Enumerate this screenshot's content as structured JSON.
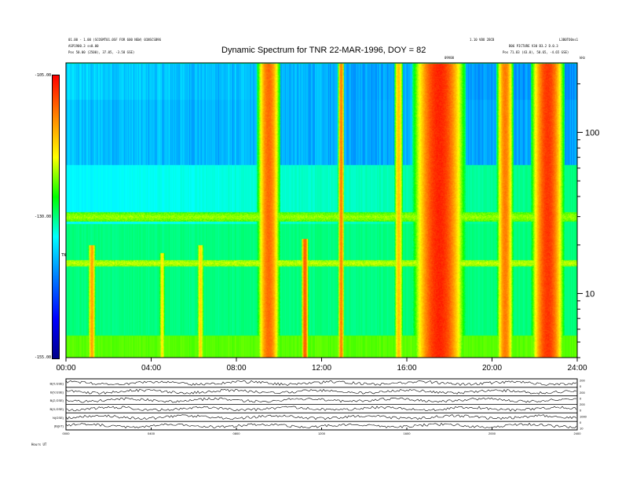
{
  "header": {
    "title": "Dynamic Spectrum for TNR 22-MAR-1996, DOY = 82",
    "left_line1": "01.00 - 1.00 (SCOSMT01.0SF FOR 600 NEW) 01NSCSB96",
    "left_line2": "ASP1900.3 ss0.00",
    "left_line3": "Pos    50.00 (2500), 37.05, -3.58 GSE)",
    "right_top_a": "1.10 VBO 2BCB",
    "right_top_b": "L3B0TO0ns1",
    "right_line2": "B06 PICTURE V30 B3.2 D.0.3",
    "right_line3": "Pos    71.83 (43.0), 50.65, -4.65 GSE)",
    "marker_label": "09V00",
    "unit_label": "kHz"
  },
  "colorbar": {
    "max_label": "-105.00",
    "mid_label": "-130.00",
    "min_label": "-155.00",
    "unit_label": "TNR"
  },
  "bottom": {
    "panel_labels": [
      "B(X,GSE)",
      "B(Y,GSE)",
      "B(Z,GSE)",
      "B(X,GSE)",
      "N(GSE)",
      "|B|(nT)"
    ],
    "right_ticks": [
      "200",
      "0",
      "200",
      "0",
      "200",
      "0",
      "1000",
      "0",
      "10"
    ],
    "x_labels": [
      "0000",
      "0400",
      "0800",
      "1200",
      "1600",
      "2000",
      "2400"
    ],
    "footer_left": "Hours UT"
  },
  "colors": {
    "cmap": [
      "#00008b",
      "#0000ff",
      "#0080ff",
      "#00ffff",
      "#00ff00",
      "#ffff00",
      "#ff8000",
      "#ff0000"
    ]
  },
  "chart_data": {
    "type": "heatmap",
    "title": "Dynamic Spectrum for TNR 22-MAR-1996, DOY = 82",
    "xlabel": "",
    "ylabel": "",
    "x_ticks": [
      "00:00",
      "04:00",
      "08:00",
      "12:00",
      "16:00",
      "20:00",
      "24:00"
    ],
    "x_range_hours": [
      0,
      24
    ],
    "y_scale": "log",
    "y_ticks": [
      10,
      100
    ],
    "y_range": [
      4,
      270
    ],
    "y_unit": "kHz",
    "color_range": [
      -155,
      -105
    ],
    "color_ticks": [
      -105,
      -130,
      -155
    ],
    "background_levels": [
      {
        "f_low": 160,
        "f_high": 270,
        "left_dB": -136,
        "right_dB": -140
      },
      {
        "f_low": 63,
        "f_high": 160,
        "left_dB": -137,
        "right_dB": -139
      },
      {
        "f_low": 27,
        "f_high": 63,
        "left_dB": -134,
        "right_dB": -130
      },
      {
        "f_low": 5.5,
        "f_high": 27,
        "left_dB": -130,
        "right_dB": -130
      },
      {
        "f_low": 4,
        "f_high": 5.5,
        "left_dB": -124,
        "right_dB": -124
      }
    ],
    "noise_bands": [
      {
        "f": 15.5,
        "width_frac": 0.02,
        "dB": -121
      },
      {
        "f": 30,
        "width_frac": 0.03,
        "dB": -122
      }
    ],
    "bursts": [
      {
        "t": 1.2,
        "width_h": 0.35,
        "dB": -114,
        "f_top": 20
      },
      {
        "t": 4.5,
        "width_h": 0.25,
        "dB": -118,
        "f_top": 18
      },
      {
        "t": 6.3,
        "width_h": 0.3,
        "dB": -117,
        "f_top": 20
      },
      {
        "t": 9.5,
        "width_h": 1.1,
        "dB": -111,
        "f_top": 270
      },
      {
        "t": 11.2,
        "width_h": 0.35,
        "dB": -110,
        "f_top": 22
      },
      {
        "t": 12.9,
        "width_h": 0.3,
        "dB": -112,
        "f_top": 270
      },
      {
        "t": 15.6,
        "width_h": 0.4,
        "dB": -116,
        "f_top": 270
      },
      {
        "t": 17.5,
        "width_h": 2.5,
        "dB": -107,
        "f_top": 270
      },
      {
        "t": 20.6,
        "width_h": 0.8,
        "dB": -112,
        "f_top": 270
      },
      {
        "t": 22.6,
        "width_h": 1.6,
        "dB": -108,
        "f_top": 270
      }
    ]
  }
}
